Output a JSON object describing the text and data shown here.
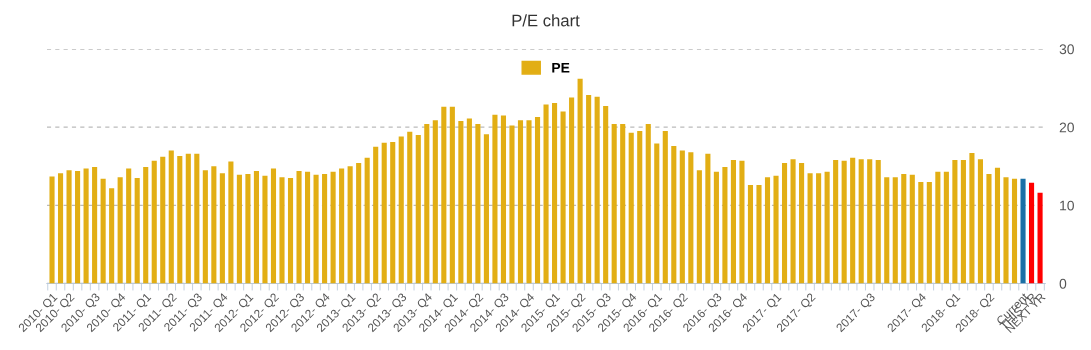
{
  "chart_data": {
    "type": "bar",
    "title": "P/E chart",
    "categories": [
      "2010- Q1",
      null,
      "2010- Q2",
      null,
      null,
      "2010- Q3",
      null,
      null,
      "2010- Q4",
      null,
      null,
      "2011- Q1",
      null,
      null,
      "2011- Q2",
      null,
      null,
      "2011- Q3",
      null,
      null,
      "2011- Q4",
      null,
      null,
      "2012- Q1",
      null,
      null,
      "2012- Q2",
      null,
      null,
      "2012- Q3",
      null,
      null,
      "2012- Q4",
      null,
      null,
      "2013- Q1",
      null,
      null,
      "2013- Q2",
      null,
      null,
      "2013- Q3",
      null,
      null,
      "2013- Q4",
      null,
      null,
      "2014- Q1",
      null,
      null,
      "2014- Q2",
      null,
      null,
      "2014- Q3",
      null,
      null,
      "2014- Q4",
      null,
      null,
      "2015- Q1",
      null,
      null,
      "2015- Q2",
      null,
      null,
      "2015- Q3",
      null,
      null,
      "2015- Q4",
      null,
      null,
      "2016- Q1",
      null,
      null,
      "2016- Q2",
      null,
      null,
      null,
      "2016- Q3",
      null,
      null,
      "2016- Q4",
      null,
      null,
      null,
      "2017- Q1",
      null,
      null,
      null,
      "2017- Q2",
      null,
      null,
      null,
      null,
      null,
      null,
      "2017- Q3",
      null,
      null,
      null,
      null,
      null,
      "2017- Q4",
      null,
      null,
      null,
      "2018- Q1",
      null,
      null,
      null,
      "2018- Q2",
      null,
      null,
      null,
      "Current",
      "THIS YR",
      "NEXT YR"
    ],
    "series": [
      {
        "name": "PE",
        "color": "#e2ae14",
        "values": [
          13.7,
          14.1,
          14.5,
          14.4,
          14.7,
          14.9,
          13.4,
          12.2,
          13.6,
          14.7,
          13.5,
          14.9,
          15.7,
          16.2,
          17.0,
          16.3,
          16.6,
          16.6,
          14.5,
          15.0,
          14.1,
          15.6,
          13.9,
          14.0,
          14.4,
          13.8,
          14.7,
          13.6,
          13.5,
          14.4,
          14.3,
          13.9,
          14.0,
          14.3,
          14.7,
          15.0,
          15.4,
          16.1,
          17.5,
          18.0,
          18.1,
          18.8,
          19.4,
          19.0,
          20.4,
          20.9,
          22.6,
          22.6,
          20.8,
          21.1,
          20.4,
          19.1,
          21.6,
          21.5,
          20.2,
          20.9,
          20.9,
          21.3,
          22.9,
          23.1,
          22.0,
          23.8,
          26.2,
          24.1,
          23.9,
          22.7,
          20.4,
          20.4,
          19.3,
          19.5,
          20.4,
          17.9,
          19.5,
          17.6,
          17.0,
          16.8,
          14.5,
          16.6,
          14.3,
          14.9,
          15.8,
          15.7,
          12.6,
          12.6,
          13.6,
          13.8,
          15.4,
          15.9,
          15.4,
          14.1,
          14.1,
          14.3,
          15.8,
          15.7,
          16.1,
          15.9,
          15.9,
          15.8,
          13.6,
          13.6,
          14.0,
          13.9,
          13.0,
          13.0,
          14.3,
          14.3,
          15.8,
          15.8,
          16.7,
          15.9,
          14.0,
          14.8,
          13.6,
          13.4,
          13.4,
          12.9,
          11.6
        ],
        "colors": [
          "#e2ae14",
          "#e2ae14",
          "#e2ae14",
          "#e2ae14",
          "#e2ae14",
          "#e2ae14",
          "#e2ae14",
          "#e2ae14",
          "#e2ae14",
          "#e2ae14",
          "#e2ae14",
          "#e2ae14",
          "#e2ae14",
          "#e2ae14",
          "#e2ae14",
          "#e2ae14",
          "#e2ae14",
          "#e2ae14",
          "#e2ae14",
          "#e2ae14",
          "#e2ae14",
          "#e2ae14",
          "#e2ae14",
          "#e2ae14",
          "#e2ae14",
          "#e2ae14",
          "#e2ae14",
          "#e2ae14",
          "#e2ae14",
          "#e2ae14",
          "#e2ae14",
          "#e2ae14",
          "#e2ae14",
          "#e2ae14",
          "#e2ae14",
          "#e2ae14",
          "#e2ae14",
          "#e2ae14",
          "#e2ae14",
          "#e2ae14",
          "#e2ae14",
          "#e2ae14",
          "#e2ae14",
          "#e2ae14",
          "#e2ae14",
          "#e2ae14",
          "#e2ae14",
          "#e2ae14",
          "#e2ae14",
          "#e2ae14",
          "#e2ae14",
          "#e2ae14",
          "#e2ae14",
          "#e2ae14",
          "#e2ae14",
          "#e2ae14",
          "#e2ae14",
          "#e2ae14",
          "#e2ae14",
          "#e2ae14",
          "#e2ae14",
          "#e2ae14",
          "#e2ae14",
          "#e2ae14",
          "#e2ae14",
          "#e2ae14",
          "#e2ae14",
          "#e2ae14",
          "#e2ae14",
          "#e2ae14",
          "#e2ae14",
          "#e2ae14",
          "#e2ae14",
          "#e2ae14",
          "#e2ae14",
          "#e2ae14",
          "#e2ae14",
          "#e2ae14",
          "#e2ae14",
          "#e2ae14",
          "#e2ae14",
          "#e2ae14",
          "#e2ae14",
          "#e2ae14",
          "#e2ae14",
          "#e2ae14",
          "#e2ae14",
          "#e2ae14",
          "#e2ae14",
          "#e2ae14",
          "#e2ae14",
          "#e2ae14",
          "#e2ae14",
          "#e2ae14",
          "#e2ae14",
          "#e2ae14",
          "#e2ae14",
          "#e2ae14",
          "#e2ae14",
          "#e2ae14",
          "#e2ae14",
          "#e2ae14",
          "#e2ae14",
          "#e2ae14",
          "#e2ae14",
          "#e2ae14",
          "#e2ae14",
          "#e2ae14",
          "#e2ae14",
          "#e2ae14",
          "#e2ae14",
          "#e2ae14",
          "#e2ae14",
          "#e2ae14",
          "#1a70a6",
          "#ff0000",
          "#ff0000"
        ]
      }
    ],
    "ylim": [
      0,
      30
    ],
    "yticks": [
      0,
      10,
      20,
      30
    ],
    "grid": "y",
    "legend": "top"
  }
}
